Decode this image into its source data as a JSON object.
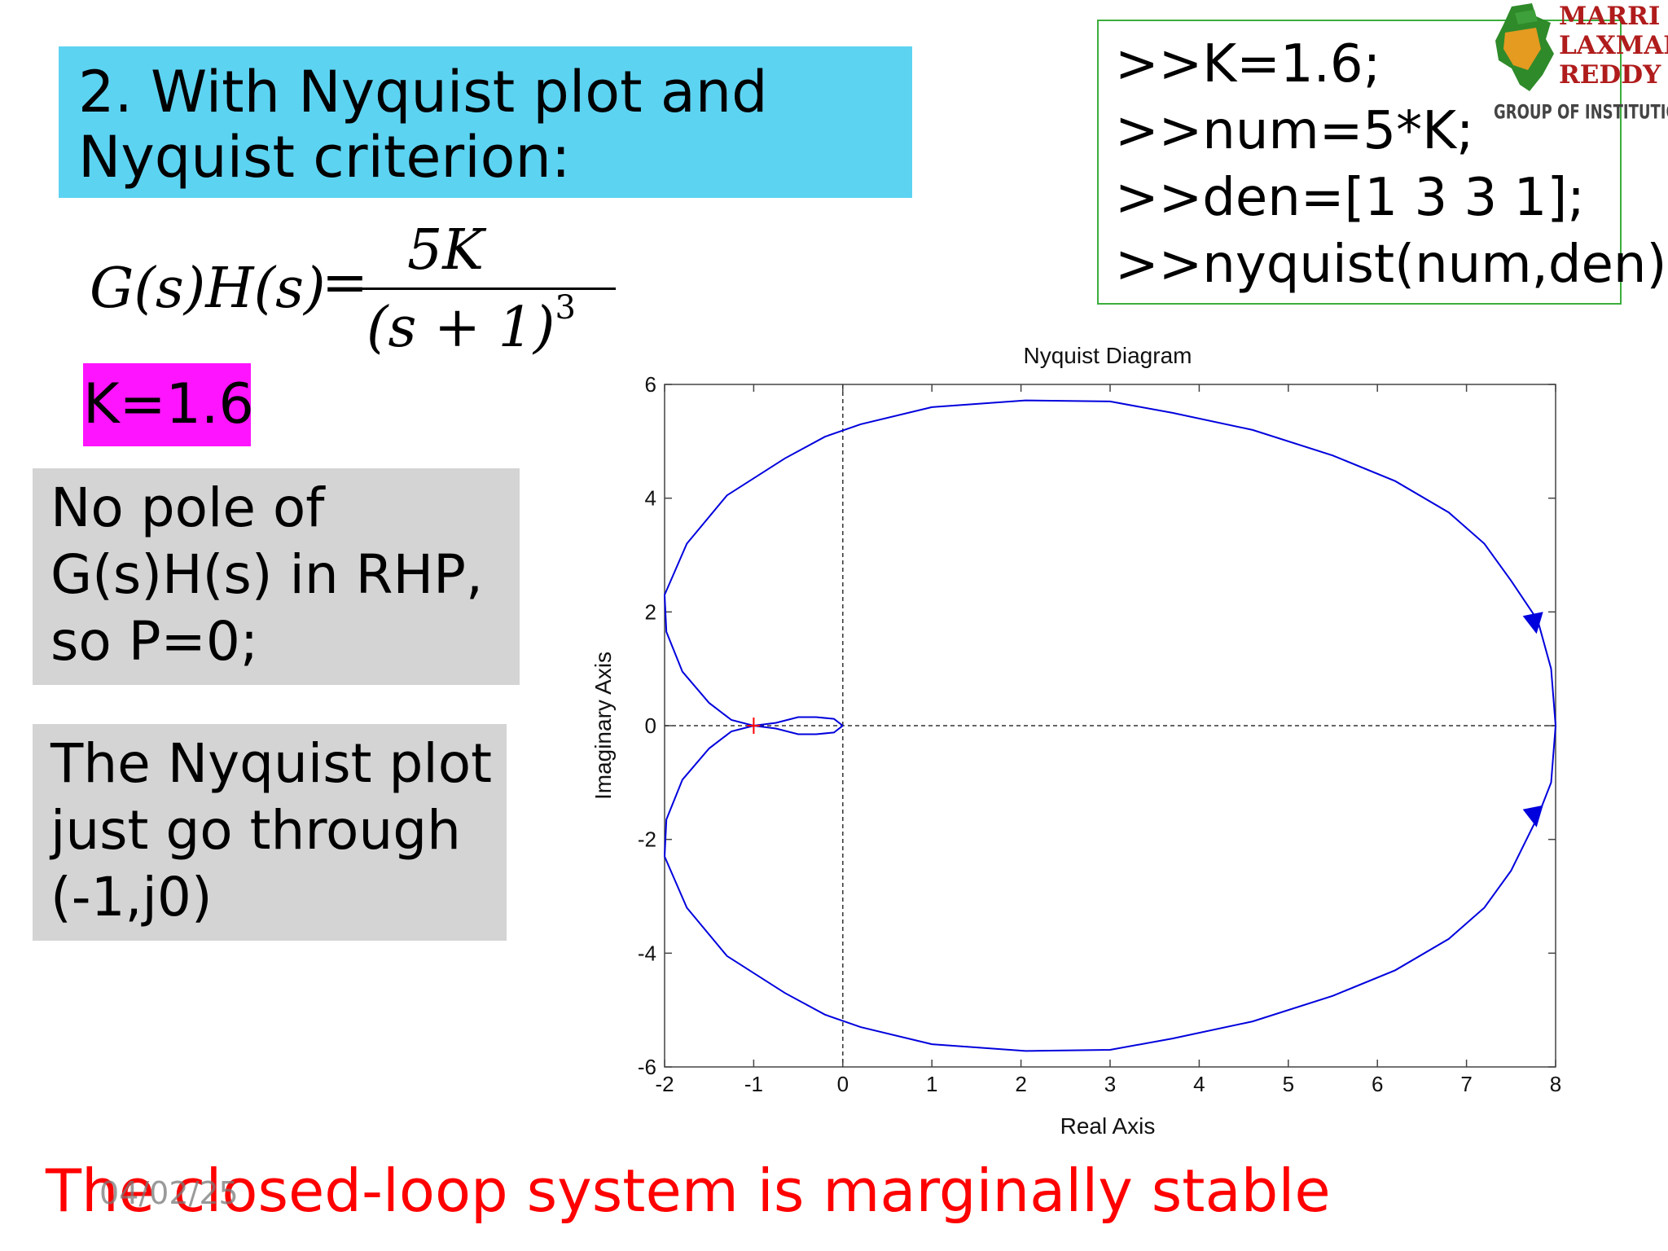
{
  "heading": {
    "line1": "2. With Nyquist plot and",
    "line2": "Nyquist criterion:"
  },
  "formula": {
    "lhs": "G(s)H(s)",
    "equals": "=",
    "numerator": "5K",
    "denominator": "(s + 1)",
    "exponent": "3"
  },
  "k_badge": "K=1.6",
  "rhp_box": {
    "line1": "No pole of",
    "line2": "G(s)H(s) in RHP,",
    "line3": "so P=0;"
  },
  "nyquist_box": {
    "line1": "The Nyquist plot",
    "line2": "just go through",
    "line3": "(-1,j0)"
  },
  "code": {
    "line1": ">>K=1.6;",
    "line2": ">>num=5*K;",
    "line3": ">>den=[1 3 3 1];",
    "line4": ">>nyquist(num,den);"
  },
  "logo": {
    "line1": "MARRI",
    "line2": "LAXMAN",
    "line3": "REDDY",
    "line4": "GROUP OF INSTITUTIONS"
  },
  "conclusion": "The closed-loop system is marginally stable",
  "date_stamp": "04/02/25",
  "colors": {
    "heading_bg": "#5dd3f2",
    "k_badge_bg": "#ff14ff",
    "grey_box_bg": "#d4d4d4",
    "code_border": "#3cae3c",
    "curve": "#0000dd",
    "critical_point": "#ff0000",
    "conclusion_text": "#ff0000"
  },
  "chart_data": {
    "type": "line",
    "title": "Nyquist Diagram",
    "xlabel": "Real Axis",
    "ylabel": "Imaginary Axis",
    "xlim": [
      -2,
      8
    ],
    "ylim": [
      -6,
      6
    ],
    "xticks": [
      "-2",
      "-1",
      "0",
      "1",
      "2",
      "3",
      "4",
      "5",
      "6",
      "7",
      "8"
    ],
    "yticks": [
      "-6",
      "-4",
      "-2",
      "0",
      "2",
      "4",
      "6"
    ],
    "critical_point": [
      -1,
      0
    ],
    "series": [
      {
        "values": [
          [
            8,
            0
          ],
          [
            7.95,
            1.0
          ],
          [
            7.8,
            1.85
          ],
          [
            7.5,
            2.55
          ],
          [
            7.2,
            3.2
          ],
          [
            6.8,
            3.75
          ],
          [
            6.2,
            4.3
          ],
          [
            5.5,
            4.75
          ],
          [
            4.6,
            5.2
          ],
          [
            3.7,
            5.5
          ],
          [
            3.0,
            5.7
          ],
          [
            2.05,
            5.72
          ],
          [
            1.0,
            5.6
          ],
          [
            0.2,
            5.3
          ],
          [
            -0.2,
            5.08
          ],
          [
            -0.65,
            4.7
          ],
          [
            -1.3,
            4.05
          ],
          [
            -1.75,
            3.2
          ],
          [
            -2.0,
            2.3
          ],
          [
            -1.98,
            1.65
          ],
          [
            -1.8,
            0.95
          ],
          [
            -1.5,
            0.4
          ],
          [
            -1.25,
            0.1
          ],
          [
            -1.0,
            0.0
          ],
          [
            -0.75,
            0.05
          ],
          [
            -0.5,
            0.15
          ],
          [
            -0.3,
            0.15
          ],
          [
            -0.1,
            0.12
          ],
          [
            0,
            0
          ]
        ]
      },
      {
        "values": [
          [
            8,
            0
          ],
          [
            7.95,
            -1.0
          ],
          [
            7.8,
            -1.6
          ],
          [
            7.5,
            -2.55
          ],
          [
            7.2,
            -3.2
          ],
          [
            6.8,
            -3.75
          ],
          [
            6.2,
            -4.3
          ],
          [
            5.5,
            -4.75
          ],
          [
            4.6,
            -5.2
          ],
          [
            3.7,
            -5.5
          ],
          [
            3.0,
            -5.7
          ],
          [
            2.05,
            -5.72
          ],
          [
            1.0,
            -5.6
          ],
          [
            0.2,
            -5.3
          ],
          [
            -0.2,
            -5.08
          ],
          [
            -0.65,
            -4.7
          ],
          [
            -1.3,
            -4.05
          ],
          [
            -1.75,
            -3.2
          ],
          [
            -2.0,
            -2.3
          ],
          [
            -1.98,
            -1.65
          ],
          [
            -1.8,
            -0.95
          ],
          [
            -1.5,
            -0.4
          ],
          [
            -1.25,
            -0.1
          ],
          [
            -1.0,
            0.0
          ],
          [
            -0.75,
            -0.05
          ],
          [
            -0.5,
            -0.15
          ],
          [
            -0.3,
            -0.15
          ],
          [
            -0.1,
            -0.12
          ],
          [
            0,
            0
          ]
        ]
      }
    ],
    "arrows": [
      {
        "x": 7.75,
        "y": 1.8,
        "direction": "down"
      },
      {
        "x": 7.75,
        "y": -1.6,
        "direction": "down"
      }
    ],
    "reference_lines": {
      "x": 0,
      "y": 0
    }
  }
}
